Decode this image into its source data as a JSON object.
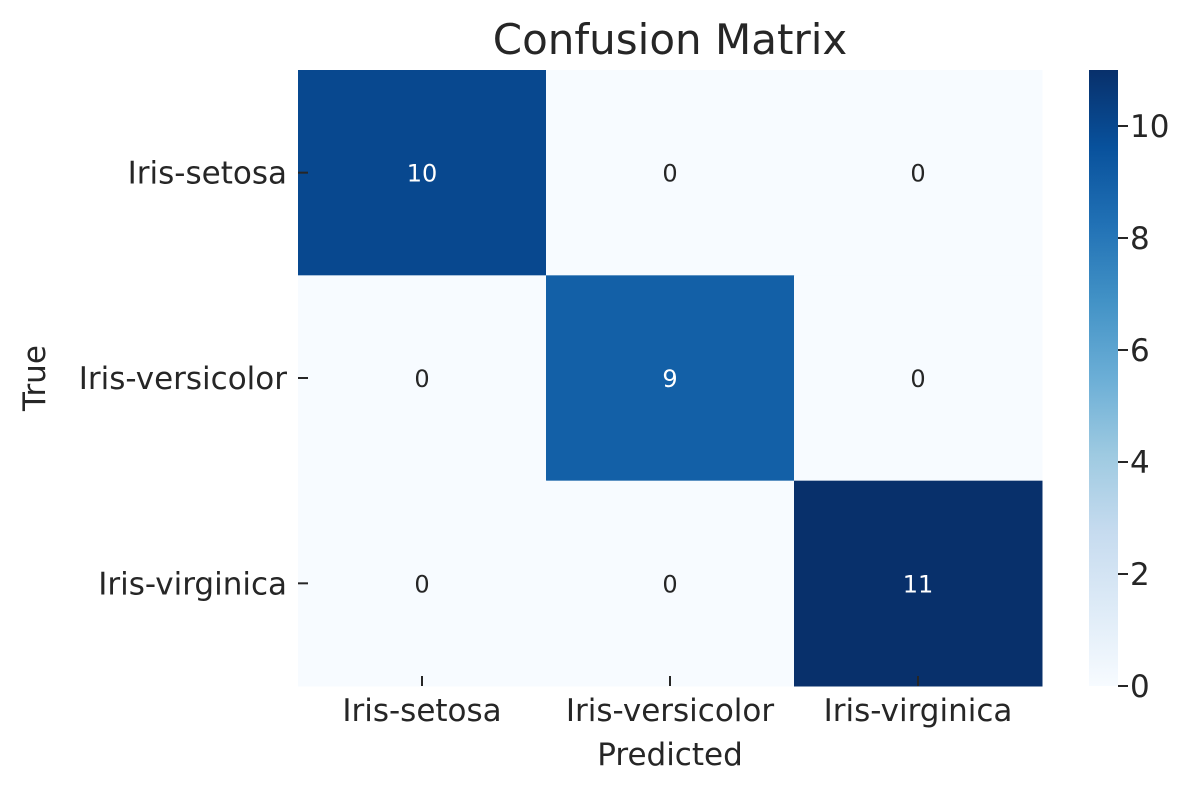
{
  "chart_data": {
    "type": "heatmap",
    "title": "Confusion Matrix",
    "xlabel": "Predicted",
    "ylabel": "True",
    "x_categories": [
      "Iris-setosa",
      "Iris-versicolor",
      "Iris-virginica"
    ],
    "y_categories": [
      "Iris-setosa",
      "Iris-versicolor",
      "Iris-virginica"
    ],
    "values": [
      [
        10,
        0,
        0
      ],
      [
        0,
        9,
        0
      ],
      [
        0,
        0,
        11
      ]
    ],
    "colormap": "Blues",
    "colorbar": {
      "range": [
        0,
        11
      ],
      "ticks": [
        0,
        2,
        4,
        6,
        8,
        10
      ]
    },
    "grid": false
  }
}
